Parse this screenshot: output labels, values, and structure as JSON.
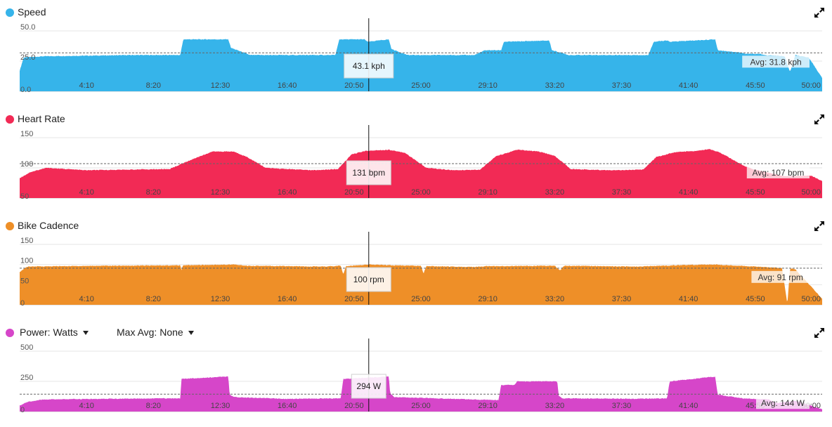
{
  "icons": {
    "expand": "expand-arrows-icon",
    "dropdown": "caret-down-icon"
  },
  "chart_data": [
    {
      "id": "speed",
      "type": "area",
      "title": "Speed",
      "color": "#36b4ea",
      "ylim": [
        0,
        50
      ],
      "yticks": [
        {
          "value": 0,
          "label": "0.0"
        },
        {
          "value": 25,
          "label": "25.0"
        },
        {
          "value": 50,
          "label": "50.0"
        }
      ],
      "xlim": [
        0,
        3000
      ],
      "xticks": [
        {
          "value": 250,
          "label": "4:10"
        },
        {
          "value": 500,
          "label": "8:20"
        },
        {
          "value": 750,
          "label": "12:30"
        },
        {
          "value": 1000,
          "label": "16:40"
        },
        {
          "value": 1250,
          "label": "20:50"
        },
        {
          "value": 1500,
          "label": "25:00"
        },
        {
          "value": 1750,
          "label": "29:10"
        },
        {
          "value": 2000,
          "label": "33:20"
        },
        {
          "value": 2250,
          "label": "37:30"
        },
        {
          "value": 2500,
          "label": "41:40"
        },
        {
          "value": 2750,
          "label": "45:50"
        },
        {
          "value": 3000,
          "label": "50:00"
        }
      ],
      "x": [
        0,
        15,
        90,
        420,
        600,
        612,
        780,
        790,
        850,
        860,
        1180,
        1195,
        1290,
        1300,
        1380,
        1390,
        1450,
        1460,
        1700,
        1740,
        1800,
        1810,
        1980,
        1990,
        2040,
        2050,
        2350,
        2370,
        2420,
        2430,
        2600,
        2610,
        2700,
        2710,
        2770,
        2780,
        2860,
        2880,
        2900,
        2920,
        2950,
        3000
      ],
      "values": [
        17,
        28,
        29,
        30,
        30,
        43,
        43,
        36,
        31,
        30,
        30,
        43,
        43,
        41,
        43,
        35,
        30,
        30,
        30,
        34,
        34,
        41,
        42,
        34,
        31,
        30,
        30,
        41,
        42,
        41,
        43,
        34,
        32,
        31,
        31,
        30,
        29,
        16,
        30,
        29,
        28,
        11
      ],
      "avg": 31.8,
      "avg_label": "Avg: 31.8 kph",
      "tooltip": "43.1 kph",
      "cursor_x": 1305
    },
    {
      "id": "heart_rate",
      "type": "area",
      "title": "Heart Rate",
      "color": "#f22a55",
      "ylim": [
        50,
        150
      ],
      "yticks": [
        {
          "value": 50,
          "label": "50"
        },
        {
          "value": 100,
          "label": "100"
        },
        {
          "value": 150,
          "label": "150"
        }
      ],
      "xlim": [
        0,
        3000
      ],
      "xticks": [
        {
          "value": 250,
          "label": "4:10"
        },
        {
          "value": 500,
          "label": "8:20"
        },
        {
          "value": 750,
          "label": "12:30"
        },
        {
          "value": 1000,
          "label": "16:40"
        },
        {
          "value": 1250,
          "label": "20:50"
        },
        {
          "value": 1500,
          "label": "25:00"
        },
        {
          "value": 1750,
          "label": "29:10"
        },
        {
          "value": 2000,
          "label": "33:20"
        },
        {
          "value": 2250,
          "label": "37:30"
        },
        {
          "value": 2500,
          "label": "41:40"
        },
        {
          "value": 2750,
          "label": "45:50"
        },
        {
          "value": 3000,
          "label": "50:00"
        }
      ],
      "x": [
        0,
        40,
        100,
        250,
        400,
        560,
        650,
        720,
        800,
        850,
        920,
        1000,
        1100,
        1190,
        1240,
        1290,
        1380,
        1440,
        1520,
        1620,
        1720,
        1780,
        1860,
        1940,
        2000,
        2060,
        2200,
        2330,
        2380,
        2450,
        2530,
        2580,
        2620,
        2700,
        2740,
        2860,
        2960,
        3000
      ],
      "values": [
        83,
        93,
        100,
        96,
        97,
        98,
        115,
        127,
        127,
        118,
        100,
        98,
        96,
        98,
        122,
        128,
        130,
        125,
        100,
        96,
        97,
        119,
        130,
        127,
        120,
        98,
        96,
        97,
        118,
        126,
        128,
        131,
        125,
        105,
        98,
        86,
        87,
        78
      ],
      "avg": 107,
      "avg_label": "Avg: 107 bpm",
      "tooltip": "131 bpm",
      "cursor_x": 1305
    },
    {
      "id": "bike_cadence",
      "type": "area",
      "title": "Bike Cadence",
      "color": "#ee8f28",
      "ylim": [
        0,
        150
      ],
      "yticks": [
        {
          "value": 0,
          "label": "0"
        },
        {
          "value": 50,
          "label": "50"
        },
        {
          "value": 100,
          "label": "100"
        },
        {
          "value": 150,
          "label": "150"
        }
      ],
      "xlim": [
        0,
        3000
      ],
      "xticks": [
        {
          "value": 250,
          "label": "4:10"
        },
        {
          "value": 500,
          "label": "8:20"
        },
        {
          "value": 750,
          "label": "12:30"
        },
        {
          "value": 1000,
          "label": "16:40"
        },
        {
          "value": 1250,
          "label": "20:50"
        },
        {
          "value": 1500,
          "label": "25:00"
        },
        {
          "value": 1750,
          "label": "29:10"
        },
        {
          "value": 2000,
          "label": "33:20"
        },
        {
          "value": 2250,
          "label": "37:30"
        },
        {
          "value": 2500,
          "label": "41:40"
        },
        {
          "value": 2750,
          "label": "45:50"
        },
        {
          "value": 3000,
          "label": "50:00"
        }
      ],
      "x": [
        0,
        30,
        300,
        600,
        605,
        610,
        800,
        850,
        1000,
        1150,
        1200,
        1210,
        1220,
        1300,
        1400,
        1500,
        1510,
        1520,
        1700,
        1750,
        2000,
        2020,
        2035,
        2300,
        2500,
        2600,
        2650,
        2750,
        2850,
        2870,
        2880,
        2900,
        3000
      ],
      "values": [
        82,
        95,
        97,
        98,
        85,
        98,
        100,
        97,
        96,
        95,
        97,
        76,
        96,
        100,
        98,
        97,
        78,
        96,
        94,
        96,
        97,
        85,
        97,
        95,
        99,
        100,
        98,
        95,
        91,
        2,
        91,
        88,
        15
      ],
      "avg": 91,
      "avg_label": "Avg: 91 rpm",
      "tooltip": "100 rpm",
      "cursor_x": 1305
    },
    {
      "id": "power",
      "type": "area",
      "title": "Power: Watts",
      "dropdown_label": "Max Avg: None",
      "color": "#d646c9",
      "ylim": [
        0,
        500
      ],
      "yticks": [
        {
          "value": 0,
          "label": "0"
        },
        {
          "value": 250,
          "label": "250"
        },
        {
          "value": 500,
          "label": "500"
        }
      ],
      "xlim": [
        0,
        3000
      ],
      "xticks": [
        {
          "value": 250,
          "label": "4:10"
        },
        {
          "value": 500,
          "label": "8:20"
        },
        {
          "value": 750,
          "label": "12:30"
        },
        {
          "value": 1000,
          "label": "16:40"
        },
        {
          "value": 1250,
          "label": "20:50"
        },
        {
          "value": 1500,
          "label": "25:00"
        },
        {
          "value": 1750,
          "label": "29:10"
        },
        {
          "value": 2000,
          "label": "33:20"
        },
        {
          "value": 2250,
          "label": "37:30"
        },
        {
          "value": 2500,
          "label": "41:40"
        },
        {
          "value": 2750,
          "label": "45:50"
        },
        {
          "value": 3000,
          "label": "50:00"
        }
      ],
      "x": [
        0,
        30,
        90,
        300,
        600,
        605,
        780,
        785,
        800,
        1000,
        1200,
        1210,
        1380,
        1385,
        1400,
        1700,
        1790,
        1800,
        1850,
        1860,
        2010,
        2015,
        2030,
        2300,
        2420,
        2430,
        2600,
        2610,
        2700,
        2800,
        2830,
        2900,
        3000
      ],
      "values": [
        50,
        80,
        100,
        105,
        110,
        270,
        290,
        140,
        120,
        105,
        110,
        270,
        290,
        150,
        120,
        100,
        95,
        220,
        220,
        250,
        250,
        130,
        110,
        105,
        110,
        250,
        290,
        140,
        110,
        100,
        70,
        90,
        20
      ],
      "avg": 144,
      "avg_label": "Avg: 144 W",
      "tooltip": "294 W",
      "cursor_x": 1305
    }
  ]
}
